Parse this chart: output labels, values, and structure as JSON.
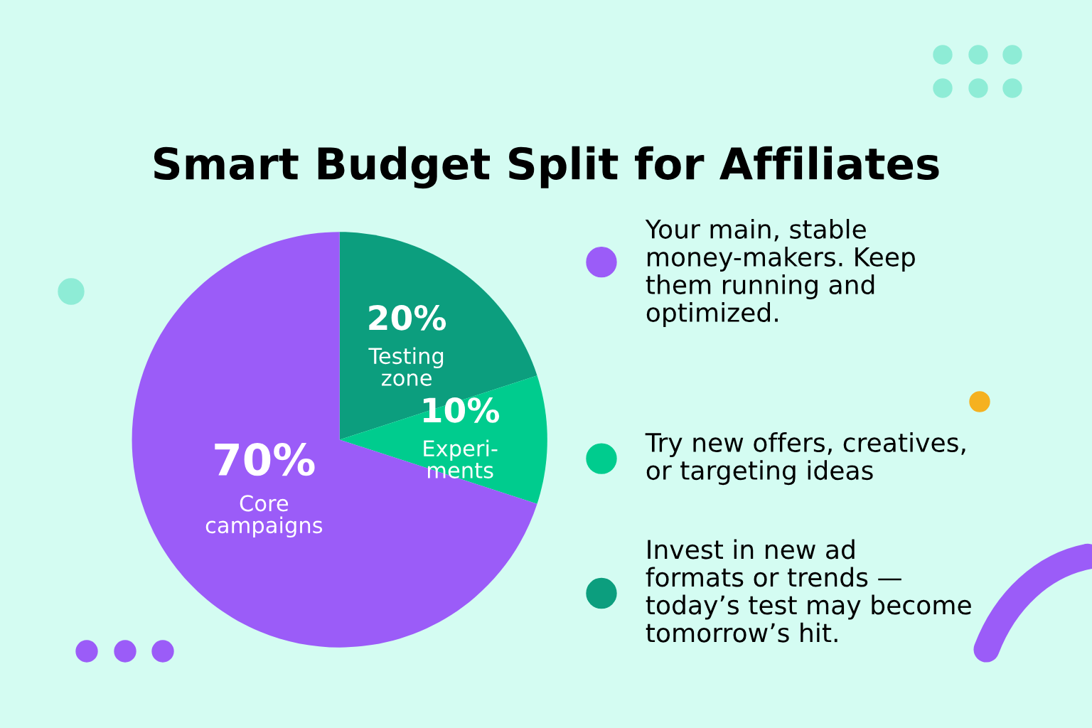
{
  "chart_data": {
    "type": "pie",
    "title": "Smart Budget Split for Affiliates",
    "categories": [
      "Testing\nzone",
      "Experi-\nments",
      "Core\ncampaigns"
    ],
    "values": [
      20,
      10,
      70
    ],
    "value_labels": [
      "20%",
      "10%",
      "70%"
    ],
    "colors": [
      "#0c9e7e",
      "#00cc8e",
      "#9b5cf8"
    ],
    "annotations": [
      "Your main, stable\nmoney-makers. Keep\nthem running and\noptimized.",
      "Try new offers, creatives,\nor targeting ideas",
      "Invest in new ad\nformats or trends —\ntoday’s test may become\ntomorrow’s hit."
    ]
  }
}
